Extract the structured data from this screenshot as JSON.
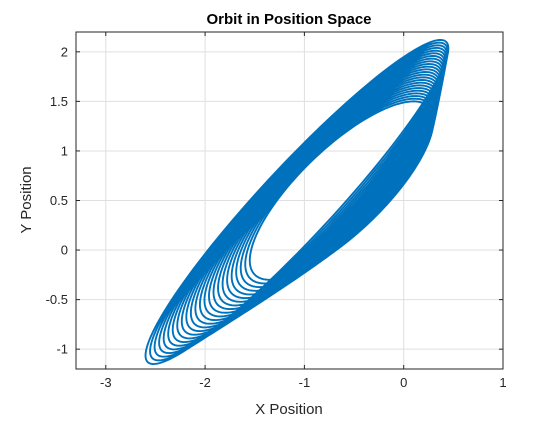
{
  "chart_data": {
    "type": "line",
    "title": "Orbit in Position Space",
    "xlabel": "X Position",
    "ylabel": "Y Position",
    "xlim": [
      -3.3,
      1.0
    ],
    "ylim": [
      -1.2,
      2.2
    ],
    "x_ticks": [
      -3,
      -2,
      -1,
      0,
      1
    ],
    "y_ticks": [
      -1,
      -0.5,
      0,
      0.5,
      1,
      1.5,
      2
    ],
    "x_tick_labels": [
      "-3",
      "-2",
      "-1",
      "0",
      "1"
    ],
    "y_tick_labels": [
      "-1",
      "-0.5",
      "0",
      "0.5",
      "1",
      "1.5",
      "2"
    ],
    "grid": true,
    "legend": "none",
    "series_color": "#0072BD",
    "series": [
      {
        "orbit": {
          "loops": 24,
          "x_max_first": 0.3,
          "x_max_last": 0.45,
          "x_min_first": -1.55,
          "x_min_last": -2.6,
          "y_max_first": 1.5,
          "y_max_last": 2.12,
          "y_min_first": -0.3,
          "y_min_last": -1.15
        }
      }
    ]
  }
}
